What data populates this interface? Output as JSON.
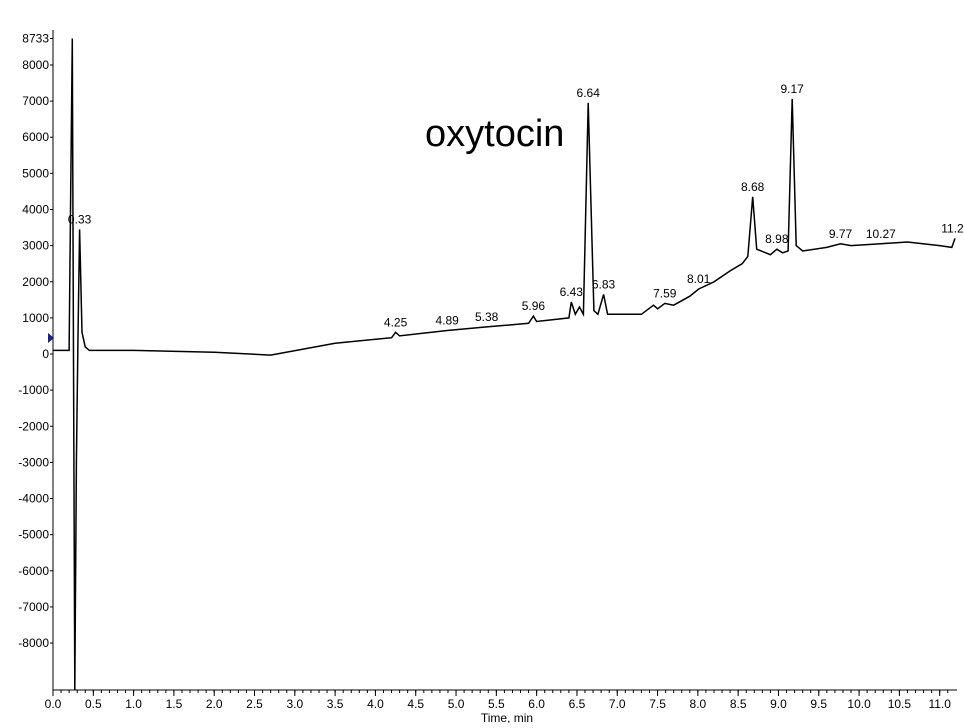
{
  "chart_data": {
    "type": "line",
    "annotation": "oxytocin",
    "xlabel": "Time, min",
    "xlim": [
      0,
      11.19
    ],
    "ylim": [
      -9300,
      8733
    ],
    "xticks": [
      {
        "value": 0,
        "label": "0.0"
      },
      {
        "value": 0.5,
        "label": "0.5"
      },
      {
        "value": 1,
        "label": "1.0"
      },
      {
        "value": 1.5,
        "label": "1.5"
      },
      {
        "value": 2,
        "label": "2.0"
      },
      {
        "value": 2.5,
        "label": "2.5"
      },
      {
        "value": 3,
        "label": "3.0"
      },
      {
        "value": 3.5,
        "label": "3.5"
      },
      {
        "value": 4,
        "label": "4.0"
      },
      {
        "value": 4.5,
        "label": "4.5"
      },
      {
        "value": 5,
        "label": "5.0"
      },
      {
        "value": 5.5,
        "label": "5.5"
      },
      {
        "value": 6,
        "label": "6.0"
      },
      {
        "value": 6.5,
        "label": "6.5"
      },
      {
        "value": 7,
        "label": "7.0"
      },
      {
        "value": 7.5,
        "label": "7.5"
      },
      {
        "value": 8,
        "label": "8.0"
      },
      {
        "value": 8.5,
        "label": "8.5"
      },
      {
        "value": 9,
        "label": "9.0"
      },
      {
        "value": 9.5,
        "label": "9.5"
      },
      {
        "value": 10,
        "label": "10.0"
      },
      {
        "value": 10.5,
        "label": "10.5"
      },
      {
        "value": 11,
        "label": "11.0"
      }
    ],
    "yticks": [
      8733,
      8000,
      7000,
      6000,
      5000,
      4000,
      3000,
      2000,
      1000,
      0,
      -1000,
      -2000,
      -3000,
      -4000,
      -5000,
      -6000,
      -7000,
      -8000
    ],
    "series": [
      {
        "color": "#000000",
        "x": [
          0.0,
          0.2,
          0.22,
          0.24,
          0.25,
          0.27,
          0.29,
          0.31,
          0.33,
          0.36,
          0.4,
          0.45,
          1.0,
          2.0,
          2.7,
          3.5,
          4.2,
          4.25,
          4.3,
          4.89,
          5.38,
          5.9,
          5.96,
          6.0,
          6.4,
          6.43,
          6.48,
          6.53,
          6.58,
          6.64,
          6.71,
          6.76,
          6.83,
          6.88,
          7.3,
          7.45,
          7.5,
          7.59,
          7.7,
          7.9,
          8.01,
          8.2,
          8.4,
          8.55,
          8.62,
          8.68,
          8.73,
          8.9,
          8.98,
          9.05,
          9.12,
          9.17,
          9.22,
          9.3,
          9.6,
          9.77,
          9.9,
          10.27,
          10.6,
          11.0,
          11.15,
          11.19
        ],
        "values": [
          100,
          100,
          4500,
          8733,
          2000,
          -9300,
          -3000,
          500,
          3450,
          600,
          200,
          100,
          100,
          50,
          -30,
          300,
          450,
          600,
          500,
          650,
          750,
          850,
          1050,
          900,
          1000,
          1440,
          1100,
          1300,
          1100,
          6950,
          1200,
          1100,
          1650,
          1100,
          1100,
          1350,
          1250,
          1400,
          1350,
          1600,
          1800,
          2000,
          2300,
          2500,
          2700,
          4350,
          2900,
          2750,
          2900,
          2800,
          2850,
          7060,
          3000,
          2850,
          2950,
          3050,
          3000,
          3050,
          3100,
          3000,
          2950,
          3200
        ]
      }
    ],
    "peaks": {
      "x": [
        0.33,
        4.25,
        4.89,
        5.38,
        5.96,
        6.43,
        6.64,
        6.83,
        7.59,
        8.01,
        8.68,
        8.98,
        9.17,
        9.77,
        10.27,
        11.2
      ],
      "value_labels": [
        "0.33",
        "4.25",
        "4.89",
        "5.38",
        "5.96",
        "6.43",
        "6.64",
        "6.83",
        "7.59",
        "8.01",
        "8.68",
        "8.98",
        "9.17",
        "9.77",
        "10.27",
        "11.20"
      ]
    }
  }
}
